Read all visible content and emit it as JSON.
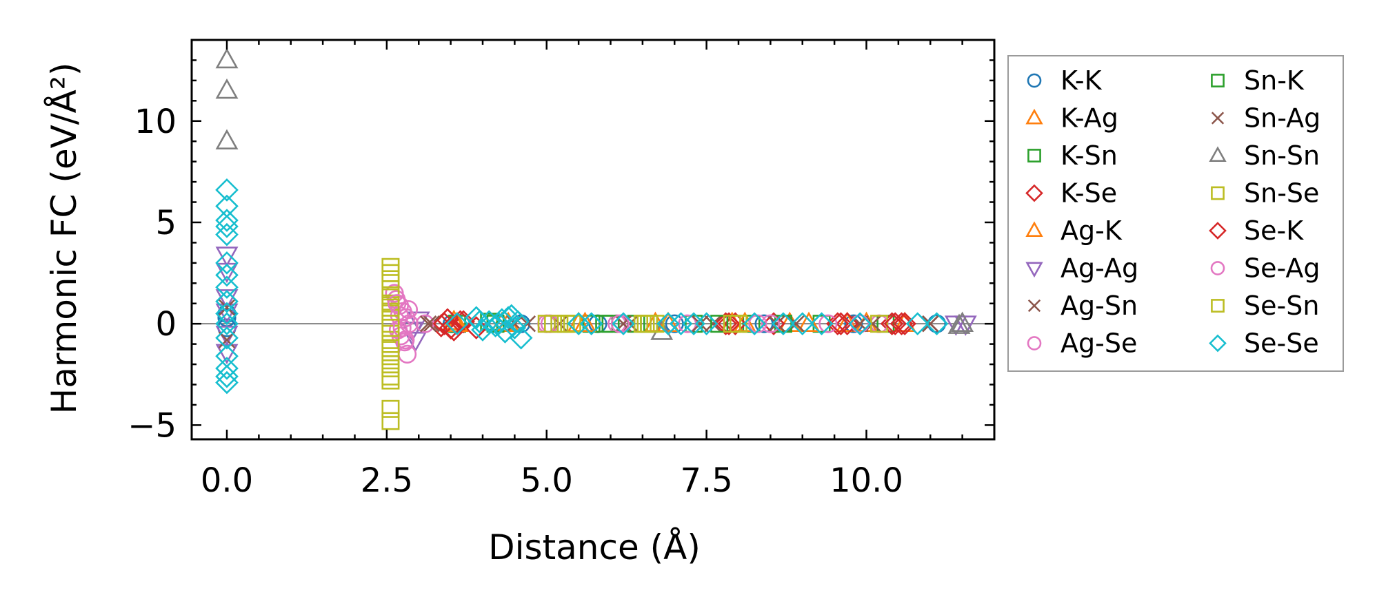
{
  "chart_data": {
    "type": "scatter",
    "title": "",
    "xlabel": "Distance (Å)",
    "ylabel": "Harmonic FC (eV/Å²)",
    "xlim": [
      -0.55,
      12.0
    ],
    "ylim": [
      -5.7,
      14.0
    ],
    "xticks": [
      0.0,
      2.5,
      5.0,
      7.5,
      10.0
    ],
    "xtick_labels": [
      "0.0",
      "2.5",
      "5.0",
      "7.5",
      "10.0"
    ],
    "yticks": [
      -5,
      0,
      5,
      10
    ],
    "ytick_labels": [
      "−5",
      "0",
      "5",
      "10"
    ],
    "zero_line": 0,
    "legend_position": "outside-right",
    "legend_columns": 2,
    "series": [
      {
        "name": "K-K",
        "marker": "circle",
        "color": "#1f77b4",
        "x": [
          0,
          0,
          0,
          3.52,
          4.6,
          5.8,
          7.0,
          8.4,
          9.8,
          11.1
        ],
        "y": [
          0.3,
          -0.2,
          0.5,
          0,
          0,
          0,
          0,
          0,
          0,
          0
        ]
      },
      {
        "name": "K-Ag",
        "marker": "triangle-up",
        "color": "#ff7f0e",
        "x": [
          3.55,
          4.3,
          5.5,
          6.7,
          7.9,
          8.8,
          9.7,
          10.6
        ],
        "y": [
          0.1,
          0,
          0,
          0,
          0,
          0,
          0,
          0
        ]
      },
      {
        "name": "K-Sn",
        "marker": "square",
        "color": "#2ca02c",
        "x": [
          3.6,
          4.1,
          5.7,
          5.9,
          6.4,
          7.3,
          8.2,
          9.3,
          10.3
        ],
        "y": [
          0,
          0.1,
          0,
          0,
          0,
          0,
          0,
          0,
          0
        ]
      },
      {
        "name": "K-Se",
        "marker": "diamond",
        "color": "#d62728",
        "x": [
          3.35,
          3.45,
          3.55,
          3.7,
          3.9,
          7.8,
          7.95,
          8.55,
          9.55,
          9.7,
          10.4,
          10.55
        ],
        "y": [
          -0.1,
          0.2,
          -0.3,
          0.1,
          -0.2,
          0,
          0,
          0,
          0,
          0,
          0,
          0
        ]
      },
      {
        "name": "Ag-K",
        "marker": "triangle-up",
        "color": "#ff7f0e",
        "x": [
          3.6,
          4.4,
          5.6,
          6.9,
          8.1,
          9.1,
          10.0
        ],
        "y": [
          0,
          0,
          0,
          0,
          0,
          0,
          0
        ]
      },
      {
        "name": "Ag-Ag",
        "marker": "triangle-down",
        "color": "#9467bd",
        "x": [
          0,
          0,
          0,
          0,
          0,
          0,
          2.95,
          3.0,
          2.9,
          11.4,
          11.55
        ],
        "y": [
          3.4,
          2.6,
          1.3,
          -0.5,
          -1.4,
          0.6,
          -0.8,
          0.2,
          -0.3,
          0,
          0
        ]
      },
      {
        "name": "Ag-Sn",
        "marker": "x",
        "color": "#8c564b",
        "x": [
          0,
          3.2,
          4.5,
          5.2,
          6.3,
          7.6,
          8.9,
          10.1,
          11.0
        ],
        "y": [
          0.8,
          0,
          0,
          0,
          0,
          0,
          0,
          0,
          0
        ]
      },
      {
        "name": "Ag-Se",
        "marker": "circle",
        "color": "#e377c2",
        "x": [
          2.62,
          2.65,
          2.7,
          2.75,
          2.8,
          2.85,
          2.68,
          2.72,
          2.78,
          2.82,
          3.1,
          5.0,
          6.1,
          7.2,
          8.3,
          9.4,
          10.2
        ],
        "y": [
          1.5,
          1.2,
          0.9,
          0.6,
          0.3,
          0,
          -0.3,
          -0.6,
          -0.9,
          -1.5,
          0,
          0,
          0,
          0,
          0,
          0,
          0
        ]
      },
      {
        "name": "Sn-K",
        "marker": "square",
        "color": "#2ca02c",
        "x": [
          4.2,
          5.3,
          6.0,
          6.6,
          7.7,
          8.7
        ],
        "y": [
          0,
          0,
          0,
          0,
          0,
          0
        ]
      },
      {
        "name": "Sn-Ag",
        "marker": "x",
        "color": "#8c564b",
        "x": [
          0,
          3.15,
          4.7,
          6.2,
          7.4,
          8.6,
          9.9,
          11.0
        ],
        "y": [
          -0.8,
          0,
          0,
          0,
          0,
          0,
          0,
          0
        ]
      },
      {
        "name": "Sn-Sn",
        "marker": "triangle-up",
        "color": "#7f7f7f",
        "x": [
          0,
          0,
          0,
          6.8,
          11.5,
          11.45
        ],
        "y": [
          13.0,
          11.5,
          9.0,
          -0.4,
          0,
          -0.1
        ]
      },
      {
        "name": "Sn-Se",
        "marker": "square",
        "color": "#bcbd22",
        "x": [
          2.56,
          2.56,
          2.56,
          2.56,
          2.56,
          2.56,
          2.56,
          2.56,
          2.56,
          2.56,
          2.56,
          2.56,
          2.56,
          2.56,
          2.56,
          5.0,
          5.2,
          5.4,
          6.5,
          6.7,
          8.0,
          10.2
        ],
        "y": [
          2.8,
          2.5,
          1.7,
          1.3,
          1.0,
          0.6,
          0.3,
          0,
          -0.5,
          -1.0,
          -1.6,
          -2.2,
          -2.6,
          -4.2,
          -4.8,
          0,
          0,
          0,
          0,
          0,
          0,
          0
        ]
      },
      {
        "name": "Se-K",
        "marker": "diamond",
        "color": "#d62728",
        "x": [
          3.4,
          3.5,
          3.65,
          7.85,
          9.6,
          10.45,
          10.6
        ],
        "y": [
          0,
          -0.2,
          0.1,
          0,
          0,
          0,
          0
        ]
      },
      {
        "name": "Se-Ag",
        "marker": "circle",
        "color": "#e377c2",
        "x": [
          2.66,
          2.7,
          2.74,
          2.79,
          2.84,
          5.05,
          6.15,
          8.5,
          9.9
        ],
        "y": [
          1.0,
          0.4,
          -0.2,
          -0.8,
          0.7,
          0,
          0,
          0,
          0
        ]
      },
      {
        "name": "Se-Sn",
        "marker": "square",
        "color": "#bcbd22",
        "x": [
          2.56,
          2.56,
          2.56,
          2.56,
          2.56,
          2.56,
          5.1,
          5.3,
          6.55,
          6.6,
          7.9,
          8.0
        ],
        "y": [
          2.2,
          0.8,
          -0.2,
          -1.2,
          -2.0,
          -2.8,
          0,
          0,
          0,
          0,
          0,
          0
        ]
      },
      {
        "name": "Se-Se",
        "marker": "diamond",
        "color": "#17becf",
        "x": [
          0,
          0,
          0,
          0,
          0,
          0,
          0,
          0,
          0,
          0,
          0,
          0,
          0,
          0,
          0,
          0,
          3.6,
          3.9,
          4.0,
          4.1,
          4.2,
          4.3,
          4.35,
          4.4,
          4.5,
          4.55,
          4.6,
          3.95,
          4.25,
          4.45,
          5.5,
          5.7,
          6.2,
          6.9,
          7.1,
          7.3,
          7.5,
          8.25,
          8.7,
          9.0,
          9.3,
          9.9,
          10.8,
          11.1
        ],
        "y": [
          6.6,
          5.8,
          5.1,
          4.8,
          4.4,
          3.0,
          2.4,
          1.8,
          1.1,
          0.5,
          0,
          -0.7,
          -1.6,
          -2.2,
          -2.6,
          -2.9,
          0,
          0.3,
          -0.3,
          0.1,
          -0.1,
          0.2,
          -0.4,
          0.3,
          -0.2,
          0.1,
          -0.7,
          0.1,
          0,
          0.4,
          0,
          0,
          0,
          0,
          0,
          0,
          0,
          0,
          0,
          0,
          0,
          0,
          0,
          0
        ]
      }
    ]
  }
}
